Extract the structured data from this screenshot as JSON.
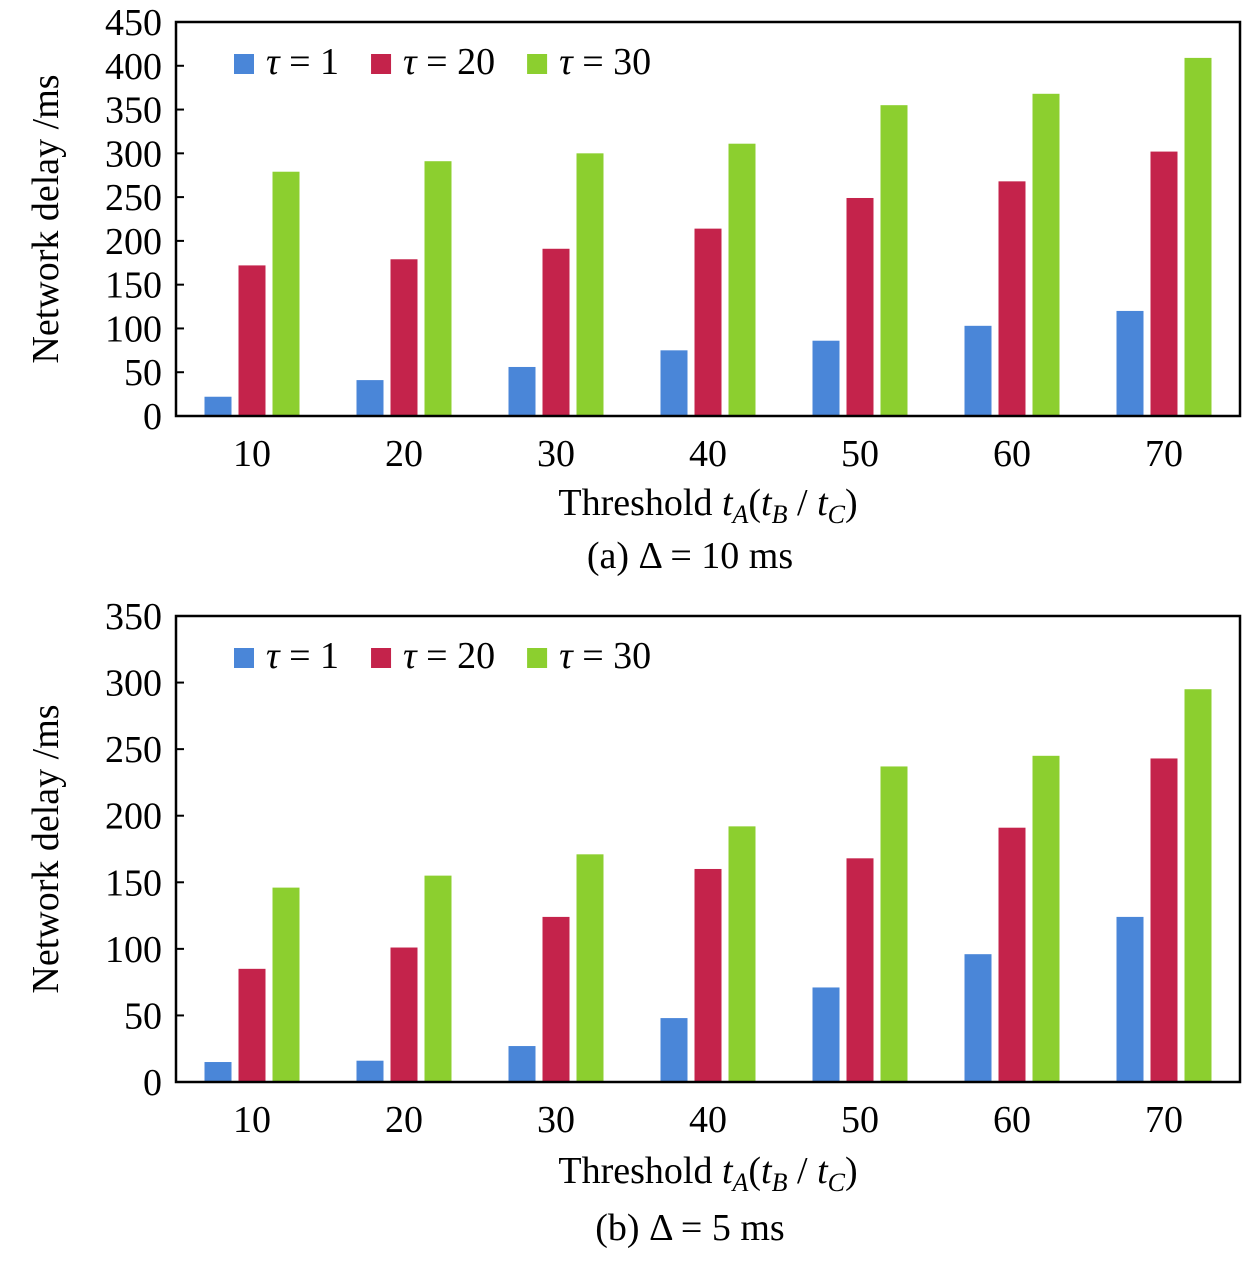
{
  "chart_data": [
    {
      "type": "bar",
      "caption": "(a) Δ = 10 ms",
      "xlabel": "Threshold t_A(t_B / t_C)",
      "ylabel": "Network delay /ms",
      "categories": [
        "10",
        "20",
        "30",
        "40",
        "50",
        "60",
        "70"
      ],
      "ylim": [
        0,
        450
      ],
      "yticks": [
        0,
        50,
        100,
        150,
        200,
        250,
        300,
        350,
        400,
        450
      ],
      "legend_position": "top-left",
      "grid": false,
      "series": [
        {
          "name": "τ = 1",
          "color": "#4a86d8",
          "values": [
            22,
            41,
            56,
            75,
            86,
            103,
            120
          ]
        },
        {
          "name": "τ = 20",
          "color": "#c4234b",
          "values": [
            172,
            179,
            191,
            214,
            249,
            268,
            302
          ]
        },
        {
          "name": "τ = 30",
          "color": "#8ccf2f",
          "values": [
            279,
            291,
            300,
            311,
            355,
            368,
            409
          ]
        }
      ]
    },
    {
      "type": "bar",
      "caption": "(b) Δ = 5 ms",
      "xlabel": "Threshold t_A(t_B / t_C)",
      "ylabel": "Network delay /ms",
      "categories": [
        "10",
        "20",
        "30",
        "40",
        "50",
        "60",
        "70"
      ],
      "ylim": [
        0,
        350
      ],
      "yticks": [
        0,
        50,
        100,
        150,
        200,
        250,
        300,
        350
      ],
      "legend_position": "top-left",
      "grid": false,
      "series": [
        {
          "name": "τ = 1",
          "color": "#4a86d8",
          "values": [
            15,
            16,
            27,
            48,
            71,
            96,
            124
          ]
        },
        {
          "name": "τ = 20",
          "color": "#c4234b",
          "values": [
            85,
            101,
            124,
            160,
            168,
            191,
            243
          ]
        },
        {
          "name": "τ = 30",
          "color": "#8ccf2f",
          "values": [
            146,
            155,
            171,
            192,
            237,
            245,
            295
          ]
        }
      ]
    }
  ]
}
